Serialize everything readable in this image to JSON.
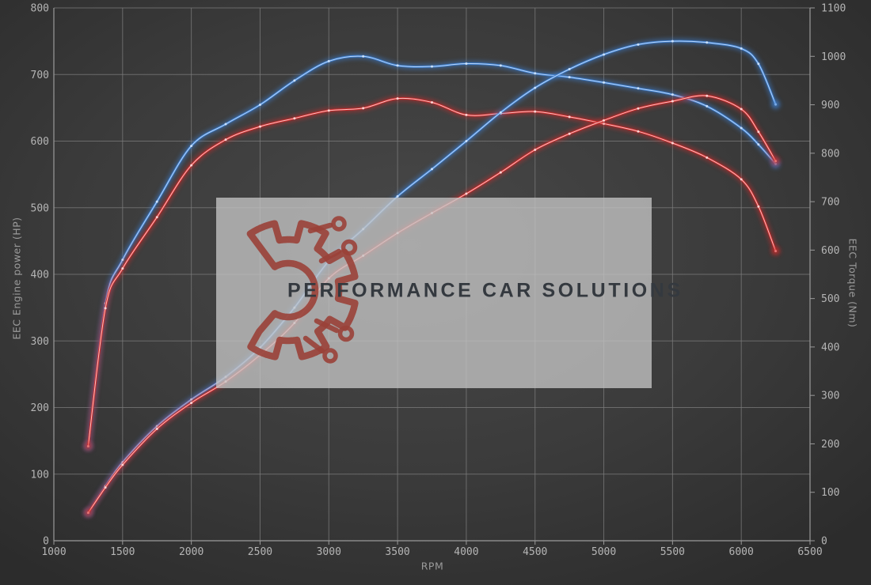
{
  "chart_data": {
    "type": "line",
    "title": "",
    "legend": "none",
    "grid": "on",
    "x": {
      "label": "RPM",
      "min": 1000,
      "max": 6500,
      "ticks": [
        1000,
        1500,
        2000,
        2500,
        3000,
        3500,
        4000,
        4500,
        5000,
        5500,
        6000,
        6500
      ]
    },
    "y_left": {
      "label": "EEC Engine power (HP)",
      "min": 0,
      "max": 800,
      "ticks": [
        0,
        100,
        200,
        300,
        400,
        500,
        600,
        700,
        800
      ]
    },
    "y_right": {
      "label": "EEC Torque (Nm)",
      "min": 0,
      "max": 1100,
      "ticks": [
        0,
        100,
        200,
        300,
        400,
        500,
        600,
        700,
        800,
        900,
        1000,
        1100
      ]
    },
    "rpm": [
      1250,
      1375,
      1500,
      1750,
      2000,
      2250,
      2500,
      2750,
      3000,
      3250,
      3500,
      3750,
      4000,
      4250,
      4500,
      4750,
      5000,
      5250,
      5500,
      5750,
      6000,
      6125,
      6250
    ],
    "series": [
      {
        "id": "torque-blue",
        "axis": "right",
        "unit": "Nm",
        "color": "#3d7fd0",
        "core": "#cfe4ff",
        "values": [
          195,
          490,
          580,
          700,
          815,
          860,
          900,
          950,
          990,
          1000,
          981,
          979,
          985,
          981,
          965,
          957,
          946,
          934,
          921,
          897,
          852,
          818,
          778
        ]
      },
      {
        "id": "torque-red",
        "axis": "right",
        "unit": "Nm",
        "color": "#cf2b2b",
        "core": "#ffdcdc",
        "values": [
          195,
          480,
          562,
          668,
          775,
          828,
          855,
          872,
          888,
          893,
          913,
          905,
          879,
          882,
          886,
          875,
          861,
          845,
          821,
          791,
          746,
          690,
          598
        ]
      },
      {
        "id": "power-blue",
        "axis": "left",
        "unit": "HP",
        "color": "#3d7fd0",
        "core": "#cfe4ff",
        "values": [
          42,
          82,
          118,
          172,
          212,
          246,
          290,
          350,
          420,
          468,
          517,
          558,
          600,
          643,
          680,
          708,
          730,
          745,
          750,
          748,
          739,
          716,
          655
        ]
      },
      {
        "id": "power-red",
        "axis": "left",
        "unit": "HP",
        "color": "#cf2b2b",
        "core": "#ffdcdc",
        "values": [
          42,
          80,
          114,
          168,
          207,
          239,
          279,
          327,
          394,
          428,
          462,
          492,
          521,
          553,
          587,
          611,
          631,
          649,
          660,
          668,
          648,
          614,
          570
        ]
      }
    ]
  },
  "watermark": {
    "text": "PERFORMANCE CAR SOLUTIONS",
    "logo": "gear-circuit-logo",
    "box_color": "#c4c4c4",
    "box_opacity": 0.78,
    "text_color": "#34393f",
    "logo_color": "#9a4138"
  },
  "colors": {
    "background": "#3b3b3b",
    "grid": "#7c7c7c",
    "axis_line": "#9a9a9a",
    "tick_text": "#b5b5b5",
    "axis_title_text": "#9b9b9b"
  }
}
